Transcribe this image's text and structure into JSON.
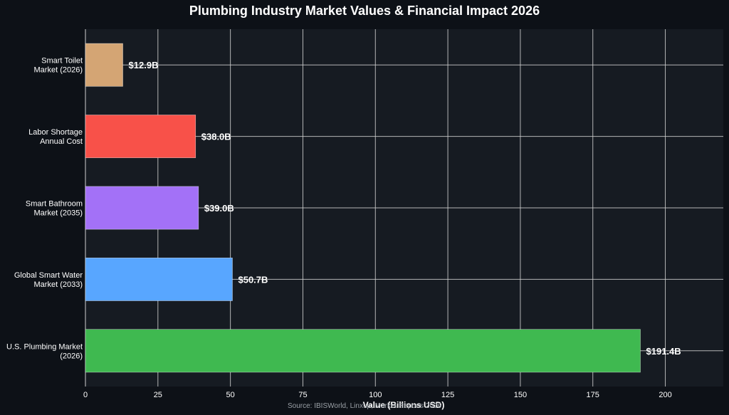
{
  "chart_data": {
    "type": "bar",
    "orientation": "horizontal",
    "title": "Plumbing Industry Market Values & Financial Impact 2026",
    "xlabel": "Value (Billions USD)",
    "ylabel": "",
    "xlim": [
      0,
      220
    ],
    "xticks": [
      0,
      25,
      50,
      75,
      100,
      125,
      150,
      175,
      200
    ],
    "grid": true,
    "categories": [
      [
        "U.S. Plumbing Market",
        "(2026)"
      ],
      [
        "Global Smart Water",
        "Market (2033)"
      ],
      [
        "Smart Bathroom",
        "Market (2035)"
      ],
      [
        "Labor Shortage",
        "Annual Cost"
      ],
      [
        "Smart Toilet",
        "Market (2026)"
      ]
    ],
    "values": [
      191.4,
      50.7,
      39.0,
      38.0,
      12.9
    ],
    "data_labels": [
      "$191.4B",
      "$50.7B",
      "$39.0B",
      "$38.0B",
      "$12.9B"
    ],
    "colors": [
      "#3fb950",
      "#58a6ff",
      "#a371f7",
      "#f85149",
      "#d4a574"
    ],
    "source": "Source: IBISWorld, Linxup, Market Reports 2026"
  },
  "theme": {
    "background": "#0d1117",
    "plot_background": "#161b22",
    "grid_color": "#d0d0d0",
    "text_color": "#ffffff"
  }
}
